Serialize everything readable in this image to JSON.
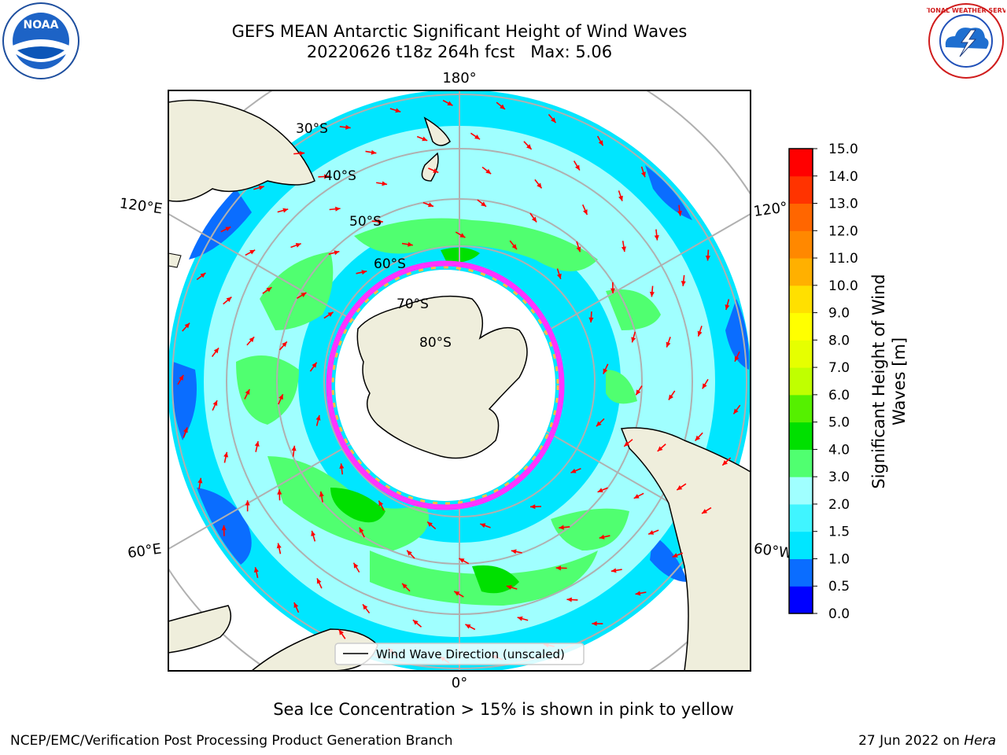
{
  "title": {
    "line1": "GEFS MEAN Antarctic Significant Height of Wind Waves",
    "line2": "20220626 t18z 264h fcst   Max: 5.06"
  },
  "map": {
    "projection": "south-polar-stereographic",
    "longitude_labels": [
      "180°",
      "120°E",
      "120°",
      "60°E",
      "60°W",
      "0°"
    ],
    "latitude_labels": [
      "30°S",
      "40°S",
      "50°S",
      "60°S",
      "70°S",
      "80°S"
    ],
    "legend_label": "Wind Wave Direction (unscaled)",
    "arrow_color": "#ff0000",
    "land_color": "#efeedc",
    "sea_ice_color": "#ff33ff"
  },
  "colorbar": {
    "ticks": [
      "0.0",
      "0.5",
      "1.0",
      "1.5",
      "2.0",
      "3.0",
      "4.0",
      "5.0",
      "6.0",
      "7.0",
      "8.0",
      "9.0",
      "10.0",
      "11.0",
      "12.0",
      "13.0",
      "14.0",
      "15.0"
    ],
    "colors": [
      "#0000ff",
      "#0a6dff",
      "#00e6ff",
      "#40f5ff",
      "#a0ffff",
      "#50ff70",
      "#00e000",
      "#55f000",
      "#c0ff00",
      "#e6ff00",
      "#ffff00",
      "#ffe000",
      "#ffb000",
      "#ff8800",
      "#ff6600",
      "#ff3300",
      "#ff0000"
    ],
    "label_line1": "Significant Height of Wind",
    "label_line2": "Waves [m]"
  },
  "caption": "Sea Ice Concentration > 15% is shown in pink to yellow",
  "footer": {
    "left": "NCEP/EMC/Verification Post Processing Product Generation Branch",
    "right_prefix": "27 Jun 2022 on ",
    "right_host": "Hera"
  },
  "logos": {
    "left": "noaa-logo",
    "left_text": "NOAA",
    "right": "national-weather-service-logo",
    "right_text": "NATIONAL WEATHER SERVICE"
  }
}
